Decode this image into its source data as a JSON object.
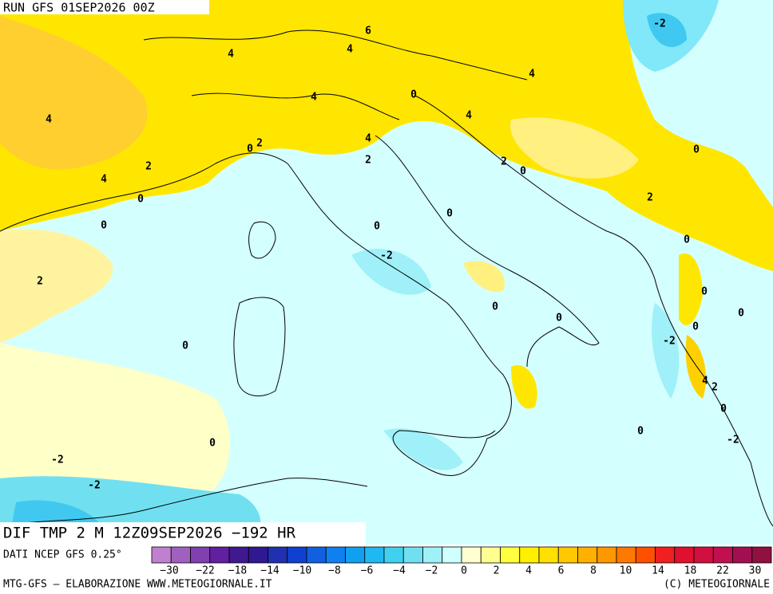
{
  "header": {
    "run": "RUN GFS 01SEP2026 00Z"
  },
  "map": {
    "contour_labels": [
      "-2",
      "6",
      "4",
      "4",
      "4",
      "4",
      "0",
      "4",
      "4",
      "2",
      "0",
      "2",
      "4",
      "2",
      "0",
      "4",
      "2",
      "0",
      "2",
      "0",
      "0",
      "0",
      "0",
      "-2",
      "0",
      "2",
      "0",
      "0",
      "0",
      "0",
      "0",
      "-2",
      "0",
      "4",
      "2",
      "0",
      "0",
      "-2",
      "0",
      "-2",
      "-2"
    ]
  },
  "footer": {
    "title": "DIF TMP 2 M 12Z09SEP2026 −192 HR",
    "source": "DATI NCEP GFS 0.25°",
    "credit": "MTG-GFS — ELABORAZIONE WWW.METEOGIORNALE.IT",
    "copyright": "(C) METEOGIORNALE"
  },
  "colorbar": {
    "colors": [
      "#c080d0",
      "#a060c0",
      "#8040b0",
      "#6020a0",
      "#401890",
      "#301890",
      "#2030b0",
      "#1040d0",
      "#1060e0",
      "#1080f0",
      "#10a0f0",
      "#20b8f0",
      "#40d0f0",
      "#70e0f0",
      "#a0f0f8",
      "#d0ffff",
      "#ffffd0",
      "#ffff90",
      "#ffff40",
      "#fff000",
      "#ffe000",
      "#ffc800",
      "#ffb000",
      "#ff9800",
      "#ff7800",
      "#ff5000",
      "#f02020",
      "#e01030",
      "#d01040",
      "#c01050",
      "#a01050",
      "#901040"
    ],
    "ticks": [
      "−30",
      "−22",
      "−18",
      "−14",
      "−10",
      "−8",
      "−6",
      "−4",
      "−2",
      "0",
      "2",
      "4",
      "6",
      "8",
      "10",
      "14",
      "18",
      "22",
      "30"
    ]
  }
}
